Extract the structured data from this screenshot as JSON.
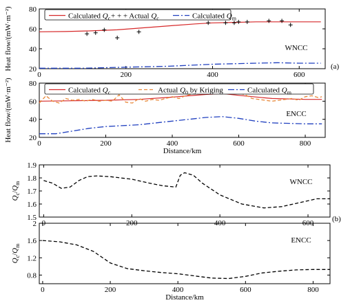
{
  "figure": {
    "panel_a_label": "(a)",
    "panel_b_label": "(b)",
    "xlabel_distance": "Distance/km"
  },
  "chart_data": [
    {
      "id": "a-wncc",
      "type": "line",
      "region_label": "WNCC",
      "ylabel": "Heat flow/(mW·m⁻²)",
      "xlim": [
        0,
        660
      ],
      "ylim": [
        20,
        80
      ],
      "xticks": [
        0,
        200,
        400,
        600
      ],
      "yticks": [
        20,
        40,
        60,
        80
      ],
      "legend_position": "top",
      "legend": [
        {
          "label_main": "Calculated ",
          "label_sym": "Q",
          "label_sub": "c",
          "style": "solid",
          "color": "#d62728"
        },
        {
          "label_main": "+ + + Actual ",
          "label_sym": "Q",
          "label_sub": "c",
          "style": "marker",
          "color": "#000000"
        },
        {
          "label_main": "Calculated ",
          "label_sym": "Q",
          "label_sub": "m",
          "style": "dashdot",
          "color": "#1f3fbf"
        }
      ],
      "series": [
        {
          "key": "calc_qc",
          "style": "solid",
          "color": "#d62728",
          "x": [
            0,
            60,
            120,
            180,
            240,
            300,
            360,
            400,
            450,
            500,
            550,
            600,
            650
          ],
          "y": [
            57,
            57.3,
            58,
            59,
            61,
            63,
            65,
            66,
            66.5,
            67,
            67,
            67,
            67
          ]
        },
        {
          "key": "actual_qc",
          "style": "marker",
          "color": "#000000",
          "x": [
            110,
            130,
            150,
            180,
            230,
            390,
            430,
            450,
            460,
            480,
            530,
            560,
            580
          ],
          "y": [
            55,
            56,
            59,
            51,
            57,
            66,
            66,
            66,
            67,
            67,
            68,
            68,
            64
          ]
        },
        {
          "key": "calc_qm",
          "style": "dashdot",
          "color": "#1f3fbf",
          "x": [
            0,
            100,
            200,
            300,
            400,
            500,
            550,
            600,
            650
          ],
          "y": [
            20.5,
            20.5,
            21.5,
            22.5,
            24.5,
            25.5,
            26,
            25.5,
            25.5
          ]
        }
      ]
    },
    {
      "id": "a-encc",
      "type": "line",
      "region_label": "ENCC",
      "ylabel": "Heat flow/(mW·m⁻²)",
      "xlabel": "Distance/km",
      "xlim": [
        0,
        860
      ],
      "ylim": [
        20,
        80
      ],
      "xticks": [
        0,
        200,
        400,
        600,
        800
      ],
      "yticks": [
        20,
        40,
        60,
        80
      ],
      "legend_position": "top",
      "legend": [
        {
          "label_main": "Calculated ",
          "label_sym": "Q",
          "label_sub": "c",
          "style": "solid",
          "color": "#d62728"
        },
        {
          "label_main": "Actual ",
          "label_sym": "Q",
          "label_sub": "0",
          "label_tail": " by Kriging",
          "style": "dashed",
          "color": "#e8893a"
        },
        {
          "label_main": "Calculated ",
          "label_sym": "Q",
          "label_sub": "m",
          "style": "dashdot",
          "color": "#1f3fbf"
        }
      ],
      "series": [
        {
          "key": "calc_qc",
          "style": "solid",
          "color": "#d62728",
          "x": [
            0,
            100,
            200,
            300,
            400,
            500,
            550,
            600,
            700,
            800,
            850
          ],
          "y": [
            60,
            60.5,
            61,
            62,
            64.5,
            67.5,
            68.5,
            66.5,
            63,
            62,
            62
          ]
        },
        {
          "key": "actual_q0_kriging",
          "style": "dashed",
          "color": "#e8893a",
          "x": [
            0,
            20,
            40,
            60,
            80,
            100,
            120,
            140,
            160,
            180,
            200,
            220,
            240,
            260,
            280,
            300,
            320,
            340,
            360,
            380,
            400,
            420,
            440,
            460,
            480,
            500,
            520,
            540,
            560,
            580,
            600,
            620,
            640,
            660,
            680,
            700,
            720,
            740,
            760,
            780,
            800,
            820,
            840,
            850
          ],
          "y": [
            58,
            66,
            60,
            58,
            63,
            61,
            62,
            60,
            62,
            60,
            61,
            60,
            67,
            59,
            58,
            63,
            60,
            62,
            61,
            63,
            65,
            63,
            66,
            68,
            69,
            71,
            73,
            75,
            74,
            72,
            69,
            67,
            63,
            62,
            61,
            60,
            61,
            62,
            63,
            61,
            65,
            66,
            64,
            65
          ]
        },
        {
          "key": "calc_qm",
          "style": "dashdot",
          "color": "#1f3fbf",
          "x": [
            0,
            50,
            100,
            150,
            200,
            300,
            400,
            450,
            500,
            550,
            600,
            650,
            700,
            800,
            850
          ],
          "y": [
            24,
            24,
            27,
            30,
            32,
            34,
            38,
            40,
            42,
            43,
            41,
            38,
            36,
            35,
            35
          ]
        }
      ]
    },
    {
      "id": "b-wncc",
      "type": "line",
      "region_label": "WNCC",
      "ylabel_main": "Q",
      "ylabel_sub1": "c",
      "ylabel_mid": "/Q",
      "ylabel_sub2": "m",
      "xlim": [
        -10,
        650
      ],
      "ylim": [
        1.5,
        1.9
      ],
      "xticks": [
        0,
        200,
        400,
        600
      ],
      "yticks": [
        1.5,
        1.6,
        1.7,
        1.8,
        1.9
      ],
      "ytick_labels": [
        "1.5",
        "1.6",
        "1.7",
        "1.8",
        "1.9"
      ],
      "series": [
        {
          "key": "ratio",
          "style": "dashed",
          "color": "#000000",
          "x": [
            0,
            20,
            40,
            60,
            80,
            100,
            120,
            150,
            200,
            240,
            270,
            300,
            310,
            320,
            340,
            360,
            400,
            450,
            500,
            540,
            580,
            620,
            650
          ],
          "y": [
            1.78,
            1.76,
            1.72,
            1.73,
            1.78,
            1.81,
            1.815,
            1.81,
            1.79,
            1.76,
            1.74,
            1.73,
            1.82,
            1.84,
            1.82,
            1.76,
            1.67,
            1.6,
            1.57,
            1.58,
            1.61,
            1.64,
            1.64
          ]
        }
      ]
    },
    {
      "id": "b-encc",
      "type": "line",
      "region_label": "ENCC",
      "xlabel": "Distance/km",
      "ylabel_main": "Q",
      "ylabel_sub1": "c",
      "ylabel_mid": "/Q",
      "ylabel_sub2": "m",
      "xlim": [
        -10,
        850
      ],
      "ylim": [
        0.6,
        2.0
      ],
      "xticks": [
        0,
        200,
        400,
        600,
        800
      ],
      "yticks": [
        0.8,
        1.2,
        1.6,
        2.0
      ],
      "ytick_labels": [
        "0.8",
        "1.2",
        "1.6",
        "2"
      ],
      "series": [
        {
          "key": "ratio",
          "style": "dashed",
          "color": "#000000",
          "x": [
            0,
            50,
            100,
            150,
            200,
            250,
            300,
            350,
            400,
            450,
            500,
            550,
            600,
            650,
            700,
            750,
            800,
            850
          ],
          "y": [
            1.6,
            1.57,
            1.5,
            1.35,
            1.08,
            0.95,
            0.9,
            0.86,
            0.83,
            0.78,
            0.73,
            0.72,
            0.77,
            0.85,
            0.89,
            0.92,
            0.93,
            0.93
          ]
        }
      ]
    }
  ]
}
